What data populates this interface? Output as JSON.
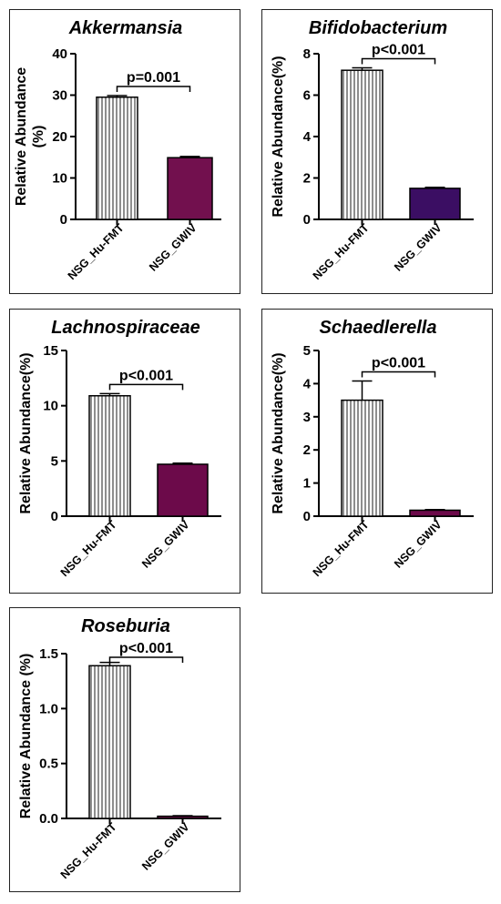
{
  "colors": {
    "hatch_bar": "#ffffff",
    "hatch_line": "#444444"
  },
  "chart_data": [
    {
      "type": "bar",
      "title": "Akkermansia",
      "ylabel": "Relative Abundance (%)",
      "ylabel_lines": [
        "Relative Abundance",
        "(%)"
      ],
      "categories": [
        "NSG_Hu-FMT",
        "NSG_GWIV"
      ],
      "values": [
        29.5,
        14.9
      ],
      "errors": [
        0.4,
        0.3
      ],
      "bar_colors": [
        "hatched",
        "#72104e"
      ],
      "ylim": [
        0,
        40
      ],
      "yticks": [
        "0",
        "10",
        "20",
        "30",
        "40"
      ],
      "annotation": "p=0.001"
    },
    {
      "type": "bar",
      "title": "Bifidobacterium",
      "ylabel": "Relative Abundance(%)",
      "ylabel_lines": [
        "Relative Abundance(%)"
      ],
      "categories": [
        "NSG_Hu-FMT",
        "NSG_GWIV"
      ],
      "values": [
        7.2,
        1.5
      ],
      "errors": [
        0.12,
        0.05
      ],
      "bar_colors": [
        "hatched",
        "#3b0e63"
      ],
      "ylim": [
        0,
        8
      ],
      "yticks": [
        "0",
        "2",
        "4",
        "6",
        "8"
      ],
      "annotation": "p<0.001"
    },
    {
      "type": "bar",
      "title": "Lachnospiraceae",
      "ylabel": "Relative Abundance(%)",
      "ylabel_lines": [
        "Relative Abundance(%)"
      ],
      "categories": [
        "NSG_Hu-FMT",
        "NSG_GWIV"
      ],
      "values": [
        10.9,
        4.7
      ],
      "errors": [
        0.2,
        0.1
      ],
      "bar_colors": [
        "hatched",
        "#6c0a4a"
      ],
      "ylim": [
        0,
        15
      ],
      "yticks": [
        "0",
        "5",
        "10",
        "15"
      ],
      "annotation": "p<0.001"
    },
    {
      "type": "bar",
      "title": "Schaedlerella",
      "ylabel": "Relative Abundance(%)",
      "ylabel_lines": [
        "Relative Abundance(%)"
      ],
      "categories": [
        "NSG_Hu-FMT",
        "NSG_GWIV"
      ],
      "values": [
        3.5,
        0.18
      ],
      "errors": [
        0.58,
        0.02
      ],
      "bar_colors": [
        "hatched",
        "#6c0a4a"
      ],
      "ylim": [
        0,
        5
      ],
      "yticks": [
        "0",
        "1",
        "2",
        "3",
        "4",
        "5"
      ],
      "annotation": "p<0.001"
    },
    {
      "type": "bar",
      "title": "Roseburia",
      "ylabel": "Relative Abundance (%)",
      "ylabel_lines": [
        "Relative Abundance (%)"
      ],
      "categories": [
        "NSG_Hu-FMT",
        "NSG_GWIV"
      ],
      "values": [
        1.39,
        0.02
      ],
      "errors": [
        0.03,
        0.005
      ],
      "bar_colors": [
        "hatched",
        "#72104e"
      ],
      "ylim": [
        0,
        1.5
      ],
      "yticks": [
        "0.0",
        "0.5",
        "1.0",
        "1.5"
      ],
      "annotation": "p<0.001"
    }
  ]
}
